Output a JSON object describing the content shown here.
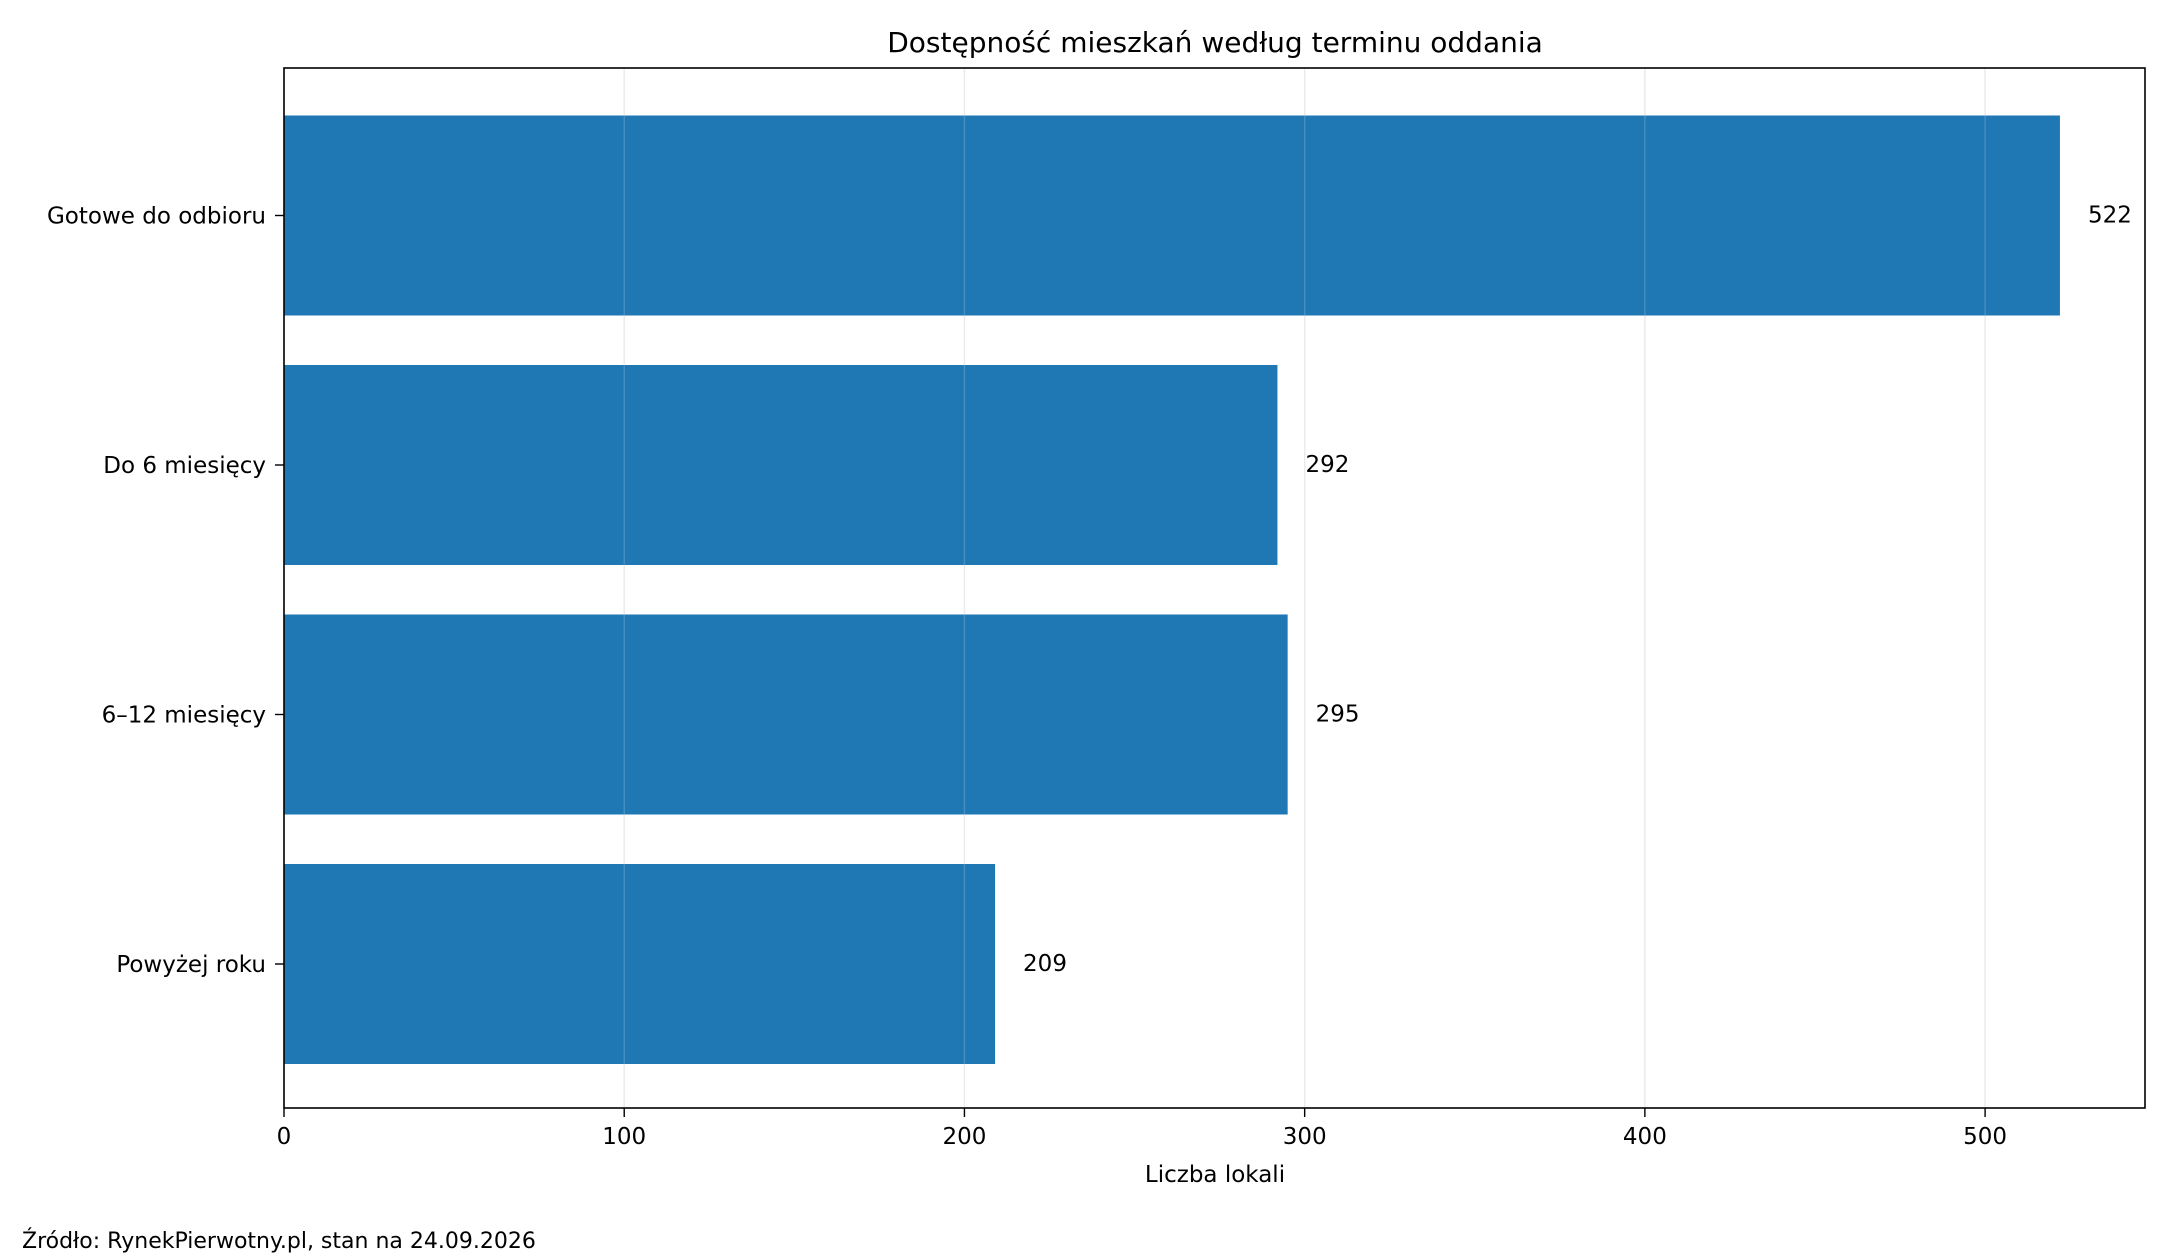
{
  "chart_data": {
    "type": "bar",
    "orientation": "horizontal",
    "title": "Dostępność mieszkań według terminu oddania",
    "xlabel": "Liczba lokali",
    "ylabel": "",
    "categories": [
      "Gotowe do odbioru",
      "Do 6 miesięcy",
      "6–12 miesięcy",
      "Powyżej roku"
    ],
    "values": [
      522,
      292,
      295,
      209
    ],
    "data_labels": [
      "522",
      "292",
      "295",
      "209"
    ],
    "xlim": [
      0,
      547
    ],
    "x_ticks": [
      0,
      100,
      200,
      300,
      400,
      500
    ],
    "x_tick_labels": [
      "0",
      "100",
      "200",
      "300",
      "400",
      "500"
    ],
    "grid": "vertical",
    "legend": "none",
    "bar_color": "#1f77b4"
  },
  "footnote": "Źródło: RynekPierwotny.pl, stan na 24.09.2026"
}
